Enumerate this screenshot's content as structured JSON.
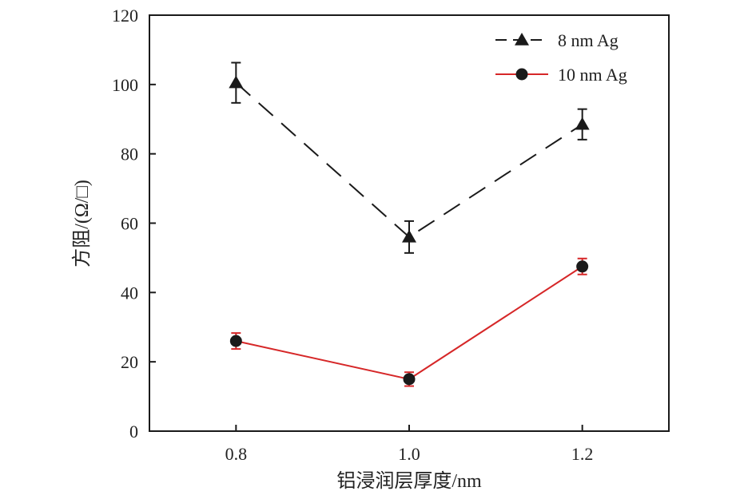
{
  "chart_data": {
    "type": "line",
    "x": [
      0.8,
      1.0,
      1.2
    ],
    "x_tick_labels": [
      "0.8",
      "1.0",
      "1.2"
    ],
    "y_tick_labels": [
      "0",
      "20",
      "40",
      "60",
      "80",
      "100",
      "120"
    ],
    "xlabel": "铝浸润层厚度/nm",
    "ylabel": "方阻/(Ω/□)",
    "xlim": [
      0.7,
      1.3
    ],
    "ylim": [
      0,
      120
    ],
    "grid": false,
    "legend_position": "top-right",
    "series": [
      {
        "name": "8 nm Ag",
        "values": [
          100.5,
          56,
          88.5
        ],
        "errors": [
          5.8,
          4.6,
          4.4
        ],
        "color": "#1a1a1a",
        "line_style": "dashed",
        "marker": "triangle"
      },
      {
        "name": "10 nm Ag",
        "values": [
          26,
          15,
          47.5
        ],
        "errors": [
          2.3,
          2.0,
          2.3
        ],
        "color": "#d62728",
        "marker_color": "#1a1a1a",
        "line_style": "solid",
        "marker": "circle"
      }
    ]
  }
}
